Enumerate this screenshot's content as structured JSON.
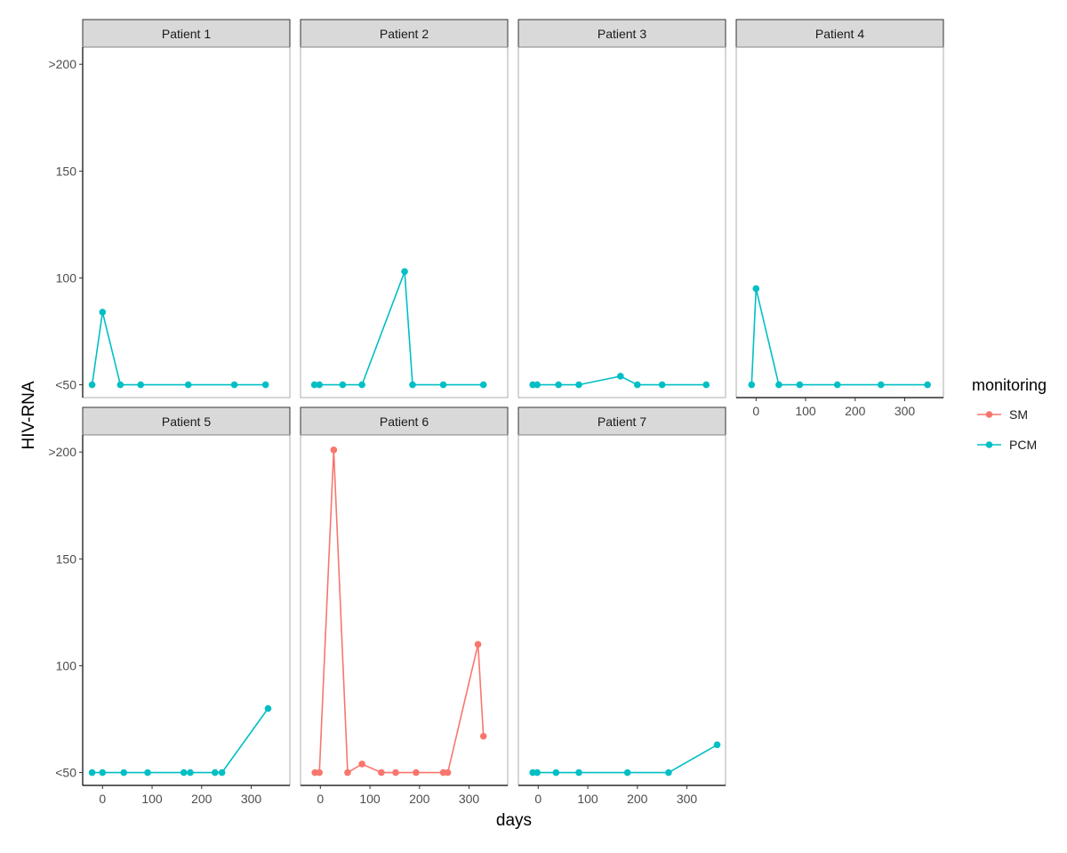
{
  "chart_data": {
    "type": "line",
    "facet_layout": "4 columns, 2 rows",
    "xlabel": "days",
    "ylabel": "HIV-RNA",
    "xlim": [
      -40,
      378
    ],
    "ylim": [
      44,
      208
    ],
    "x_ticks": [
      0,
      100,
      200,
      300
    ],
    "x_tick_labels": [
      "0",
      "100",
      "200",
      "300"
    ],
    "y_ticks": [
      50,
      100,
      150,
      200
    ],
    "y_tick_labels": [
      "<50",
      "100",
      "150",
      ">200"
    ],
    "grid": false,
    "legend": {
      "title": "monitoring",
      "placement": "right",
      "entries": [
        {
          "label": "SM",
          "color": "#F8766D"
        },
        {
          "label": "PCM",
          "color": "#00BFC4"
        }
      ]
    },
    "panels": [
      {
        "title": "Patient 1",
        "monitoring": "PCM",
        "x": [
          -21,
          0,
          36,
          77,
          173,
          266,
          329
        ],
        "y": [
          50,
          84,
          50,
          50,
          50,
          50,
          50
        ]
      },
      {
        "title": "Patient 2",
        "monitoring": "PCM",
        "x": [
          -12,
          -2,
          45,
          84,
          170,
          186,
          248,
          329
        ],
        "y": [
          50,
          50,
          50,
          50,
          103,
          50,
          50,
          50
        ]
      },
      {
        "title": "Patient 3",
        "monitoring": "PCM",
        "x": [
          -11,
          -2,
          41,
          82,
          166,
          200,
          250,
          339
        ],
        "y": [
          50,
          50,
          50,
          50,
          54,
          50,
          50,
          50
        ]
      },
      {
        "title": "Patient 4",
        "monitoring": "PCM",
        "x": [
          -9,
          0,
          46,
          88,
          164,
          252,
          346
        ],
        "y": [
          50,
          95,
          50,
          50,
          50,
          50,
          50
        ]
      },
      {
        "title": "Patient 5",
        "monitoring": "PCM",
        "x": [
          -21,
          0,
          43,
          91,
          164,
          177,
          227,
          241,
          334
        ],
        "y": [
          50,
          50,
          50,
          50,
          50,
          50,
          50,
          50,
          80
        ]
      },
      {
        "title": "Patient 6",
        "monitoring": "SM",
        "x": [
          -11,
          -2,
          27,
          55,
          84,
          123,
          152,
          193,
          248,
          257,
          318,
          329
        ],
        "y": [
          50,
          50,
          201,
          50,
          54,
          50,
          50,
          50,
          50,
          50,
          110,
          67
        ]
      },
      {
        "title": "Patient 7",
        "monitoring": "PCM",
        "x": [
          -11,
          -2,
          36,
          82,
          180,
          263,
          361
        ],
        "y": [
          50,
          50,
          50,
          50,
          50,
          50,
          63
        ]
      }
    ]
  }
}
